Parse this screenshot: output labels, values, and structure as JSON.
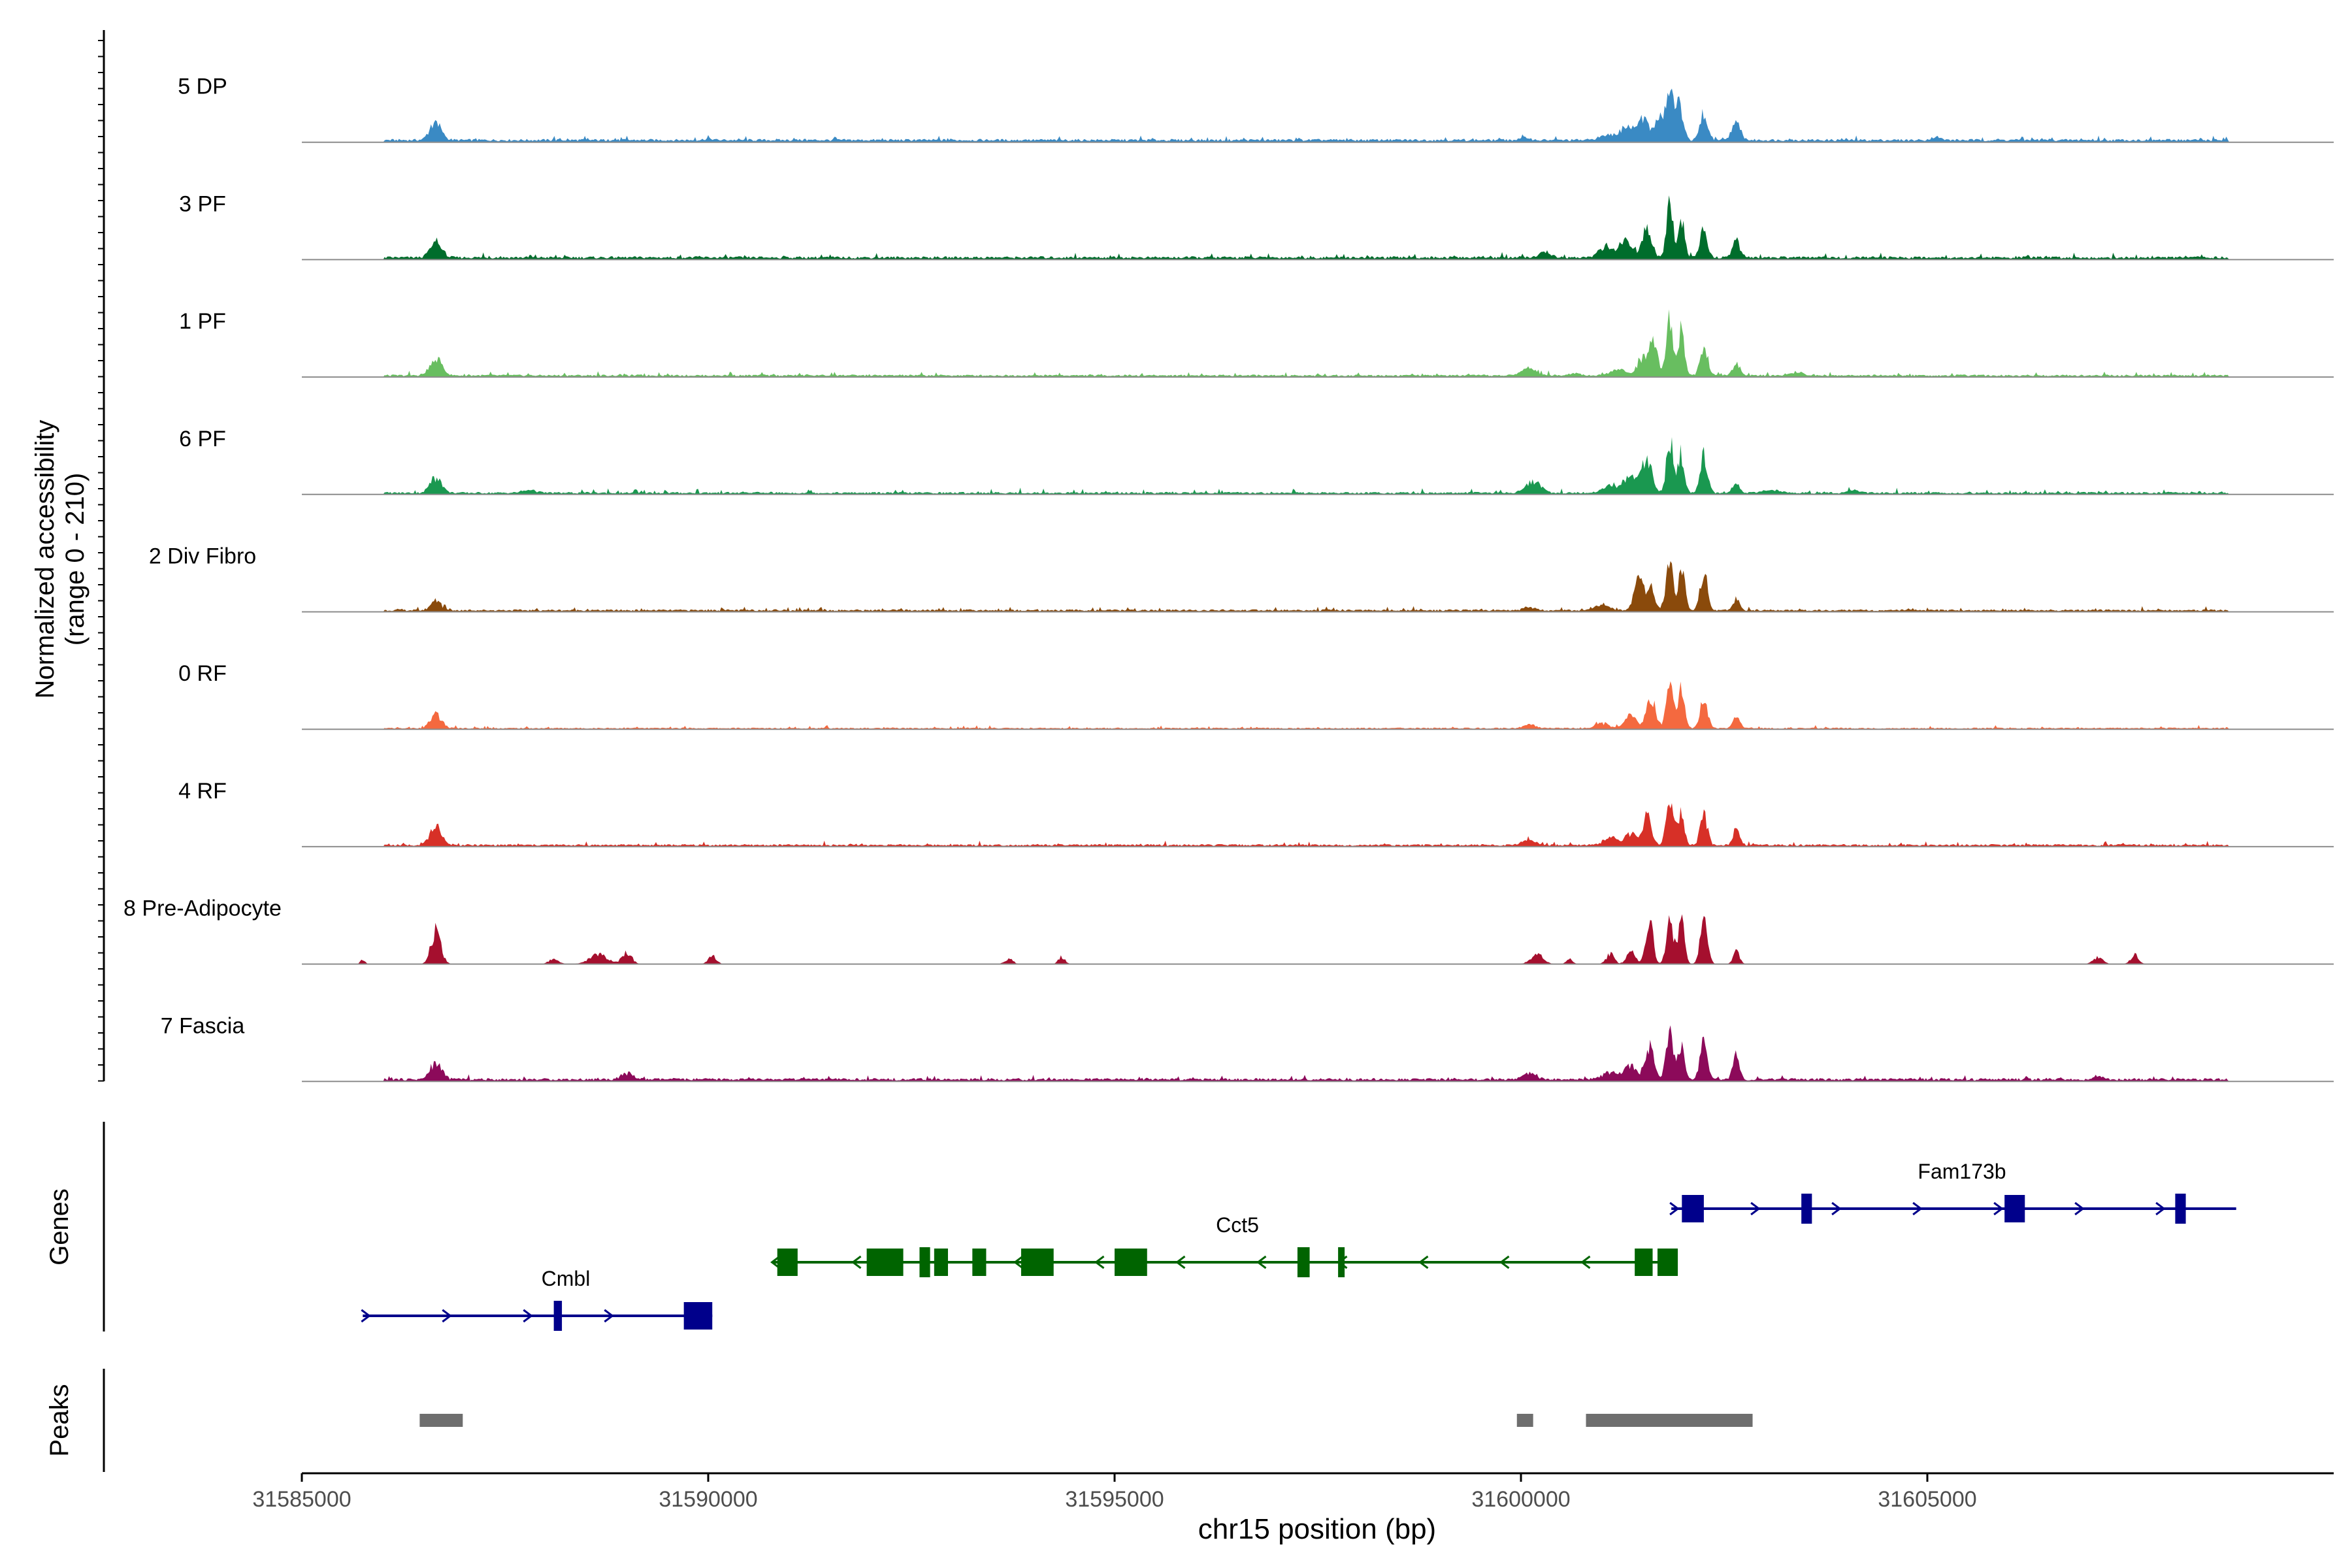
{
  "chart_data": {
    "type": "area",
    "title": "",
    "ylabel": "Normalized accessibility",
    "ylabel_range": "(range 0 - 210)",
    "xlabel": "chr15 position (bp)",
    "xlim": [
      31585000,
      31610000
    ],
    "ylim": [
      0,
      210
    ],
    "x_ticks": [
      31585000,
      31590000,
      31595000,
      31600000,
      31605000
    ],
    "x_tick_labels": [
      "31585000",
      "31590000",
      "31595000",
      "31600000",
      "31605000"
    ],
    "coverage_tracks": [
      {
        "name": "5 DP",
        "color": "#3a8ac4",
        "baseline": 4,
        "scale": 1.0,
        "noise": 2.6,
        "peaks": [
          [
            31586650,
            70,
            38
          ],
          [
            31590000,
            50,
            3
          ],
          [
            31600050,
            60,
            5
          ],
          [
            31601050,
            90,
            10
          ],
          [
            31601300,
            90,
            25
          ],
          [
            31601500,
            70,
            38
          ],
          [
            31601700,
            55,
            44
          ],
          [
            31601830,
            40,
            116
          ],
          [
            31601950,
            45,
            70
          ],
          [
            31602250,
            45,
            52
          ],
          [
            31602650,
            50,
            32
          ],
          [
            31605100,
            60,
            6
          ]
        ]
      },
      {
        "name": "3 PF",
        "color": "#006d2c",
        "baseline": 4,
        "scale": 1.0,
        "noise": 3.4,
        "peaks": [
          [
            31586650,
            70,
            28
          ],
          [
            31600300,
            70,
            10
          ],
          [
            31601050,
            90,
            20
          ],
          [
            31601300,
            70,
            38
          ],
          [
            31601550,
            55,
            62
          ],
          [
            31601830,
            40,
            106
          ],
          [
            31601970,
            40,
            72
          ],
          [
            31602250,
            45,
            58
          ],
          [
            31602650,
            45,
            34
          ]
        ]
      },
      {
        "name": "1 PF",
        "color": "#68be60",
        "baseline": 3,
        "scale": 1.0,
        "noise": 2.8,
        "peaks": [
          [
            31586650,
            70,
            34
          ],
          [
            31600100,
            90,
            14
          ],
          [
            31600650,
            80,
            5
          ],
          [
            31601200,
            90,
            12
          ],
          [
            31601500,
            70,
            30
          ],
          [
            31601630,
            55,
            56
          ],
          [
            31601830,
            40,
            106
          ],
          [
            31601970,
            40,
            90
          ],
          [
            31602250,
            45,
            62
          ],
          [
            31602650,
            45,
            24
          ],
          [
            31603400,
            80,
            5
          ]
        ]
      },
      {
        "name": "6 PF",
        "color": "#1a9850",
        "baseline": 3,
        "scale": 1.0,
        "noise": 3.2,
        "peaks": [
          [
            31586650,
            70,
            30
          ],
          [
            31587800,
            80,
            6
          ],
          [
            31600150,
            90,
            22
          ],
          [
            31601100,
            90,
            15
          ],
          [
            31601350,
            70,
            35
          ],
          [
            31601550,
            60,
            70
          ],
          [
            31601830,
            40,
            106
          ],
          [
            31601970,
            40,
            80
          ],
          [
            31602250,
            45,
            74
          ],
          [
            31602650,
            45,
            18
          ],
          [
            31603100,
            90,
            5
          ],
          [
            31604100,
            70,
            5
          ]
        ]
      },
      {
        "name": "2 Div Fibro",
        "color": "#8a4a0b",
        "baseline": 3,
        "scale": 1.0,
        "noise": 2.6,
        "peaks": [
          [
            31586650,
            60,
            20
          ],
          [
            31600100,
            70,
            6
          ],
          [
            31601000,
            80,
            10
          ],
          [
            31601450,
            55,
            64
          ],
          [
            31601600,
            45,
            44
          ],
          [
            31601830,
            40,
            106
          ],
          [
            31601980,
            40,
            82
          ],
          [
            31602250,
            45,
            76
          ],
          [
            31602650,
            40,
            20
          ]
        ]
      },
      {
        "name": "0 RF",
        "color": "#f4693f",
        "baseline": 2,
        "scale": 1.0,
        "noise": 2.0,
        "peaks": [
          [
            31586650,
            70,
            26
          ],
          [
            31600100,
            70,
            8
          ],
          [
            31601000,
            80,
            10
          ],
          [
            31601350,
            70,
            25
          ],
          [
            31601600,
            55,
            62
          ],
          [
            31601830,
            40,
            106
          ],
          [
            31601970,
            40,
            74
          ],
          [
            31602250,
            45,
            62
          ],
          [
            31602650,
            40,
            26
          ]
        ]
      },
      {
        "name": "4 RF",
        "color": "#d73027",
        "baseline": 3,
        "scale": 1.0,
        "noise": 2.6,
        "peaks": [
          [
            31586650,
            70,
            38
          ],
          [
            31600100,
            80,
            10
          ],
          [
            31601100,
            90,
            14
          ],
          [
            31601350,
            70,
            22
          ],
          [
            31601550,
            55,
            58
          ],
          [
            31601830,
            40,
            100
          ],
          [
            31601970,
            40,
            66
          ],
          [
            31602250,
            45,
            56
          ],
          [
            31602650,
            40,
            34
          ]
        ]
      },
      {
        "name": "8 Pre-Adipocyte",
        "color": "#a50f2e",
        "baseline": 0,
        "scale": 1.0,
        "noise": 0,
        "peaks": [
          [
            31585750,
            30,
            8
          ],
          [
            31586650,
            60,
            64
          ],
          [
            31588100,
            60,
            10
          ],
          [
            31588650,
            110,
            18
          ],
          [
            31589000,
            60,
            22
          ],
          [
            31590050,
            50,
            16
          ],
          [
            31593700,
            50,
            10
          ],
          [
            31594350,
            40,
            14
          ],
          [
            31600200,
            80,
            18
          ],
          [
            31600600,
            40,
            10
          ],
          [
            31601100,
            50,
            20
          ],
          [
            31601350,
            50,
            30
          ],
          [
            31601580,
            45,
            86
          ],
          [
            31601830,
            40,
            96
          ],
          [
            31601970,
            40,
            92
          ],
          [
            31602250,
            45,
            88
          ],
          [
            31602650,
            40,
            24
          ],
          [
            31607100,
            60,
            14
          ],
          [
            31607550,
            50,
            18
          ]
        ]
      },
      {
        "name": "7 Fascia",
        "color": "#8c0a5a",
        "baseline": 4,
        "scale": 1.0,
        "noise": 2.8,
        "peaks": [
          [
            31586650,
            70,
            32
          ],
          [
            31589000,
            70,
            12
          ],
          [
            31600100,
            80,
            12
          ],
          [
            31601100,
            90,
            14
          ],
          [
            31601350,
            70,
            26
          ],
          [
            31601580,
            55,
            64
          ],
          [
            31601830,
            40,
            100
          ],
          [
            31601970,
            40,
            60
          ],
          [
            31602250,
            45,
            68
          ],
          [
            31602650,
            40,
            46
          ],
          [
            31607100,
            60,
            6
          ]
        ]
      }
    ],
    "gene_track_label": "Genes",
    "genes": [
      {
        "name": "Cmbl",
        "strand": "+",
        "row": 2,
        "color": "#00008b",
        "start": 31585750,
        "end": 31590050,
        "exons": [
          [
            31588100,
            31588200
          ],
          [
            31589700,
            31590050
          ]
        ]
      },
      {
        "name": "Cct5",
        "strand": "-",
        "row": 1,
        "color": "#006400",
        "start": 31590800,
        "end": 31601850,
        "exons": [
          [
            31590850,
            31591100
          ],
          [
            31591950,
            31592400
          ],
          [
            31592600,
            31592730
          ],
          [
            31592780,
            31592950
          ],
          [
            31593250,
            31593420
          ],
          [
            31593850,
            31594250
          ],
          [
            31595000,
            31595400
          ],
          [
            31597250,
            31597400
          ],
          [
            31597750,
            31597800
          ],
          [
            31601400,
            31601620
          ],
          [
            31601680,
            31601930
          ]
        ]
      },
      {
        "name": "Fam173b",
        "strand": "+",
        "row": 0,
        "color": "#00008b",
        "start": 31601850,
        "end": 31608800,
        "exons": [
          [
            31601980,
            31602250
          ],
          [
            31603450,
            31603580
          ],
          [
            31605950,
            31606200
          ],
          [
            31608050,
            31608180
          ]
        ]
      }
    ],
    "peak_track_label": "Peaks",
    "peak_regions": [
      [
        31586450,
        31586980
      ],
      [
        31599950,
        31600150
      ],
      [
        31600800,
        31602850
      ]
    ]
  }
}
